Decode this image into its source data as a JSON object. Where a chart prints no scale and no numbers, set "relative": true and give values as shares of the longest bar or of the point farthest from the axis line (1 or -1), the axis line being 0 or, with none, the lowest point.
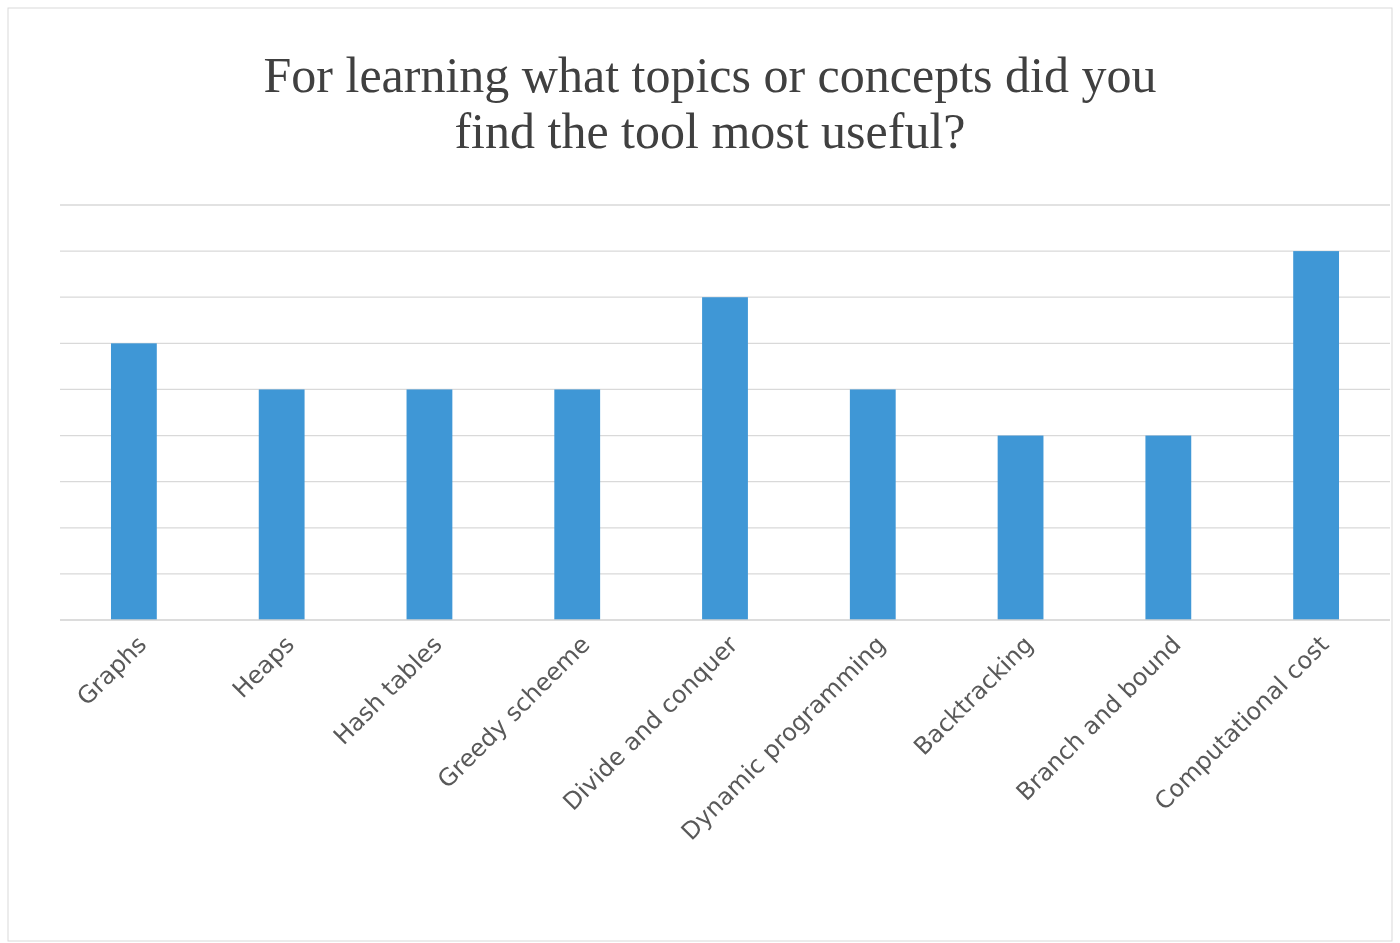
{
  "chart_data": {
    "type": "bar",
    "title": "For learning what topics or concepts did you find the tool most useful?",
    "categories": [
      "Graphs",
      "Heaps",
      "Hash tables",
      "Greedy scheeme",
      "Divide and conquer",
      "Dynamic programming",
      "Backtracking",
      "Branch and bound",
      "Computational cost"
    ],
    "values": [
      0.75,
      0.625,
      0.625,
      0.625,
      0.875,
      0.625,
      0.5,
      0.5,
      1
    ],
    "color": "#3f97d6",
    "relative": true,
    "grid": "y"
  }
}
